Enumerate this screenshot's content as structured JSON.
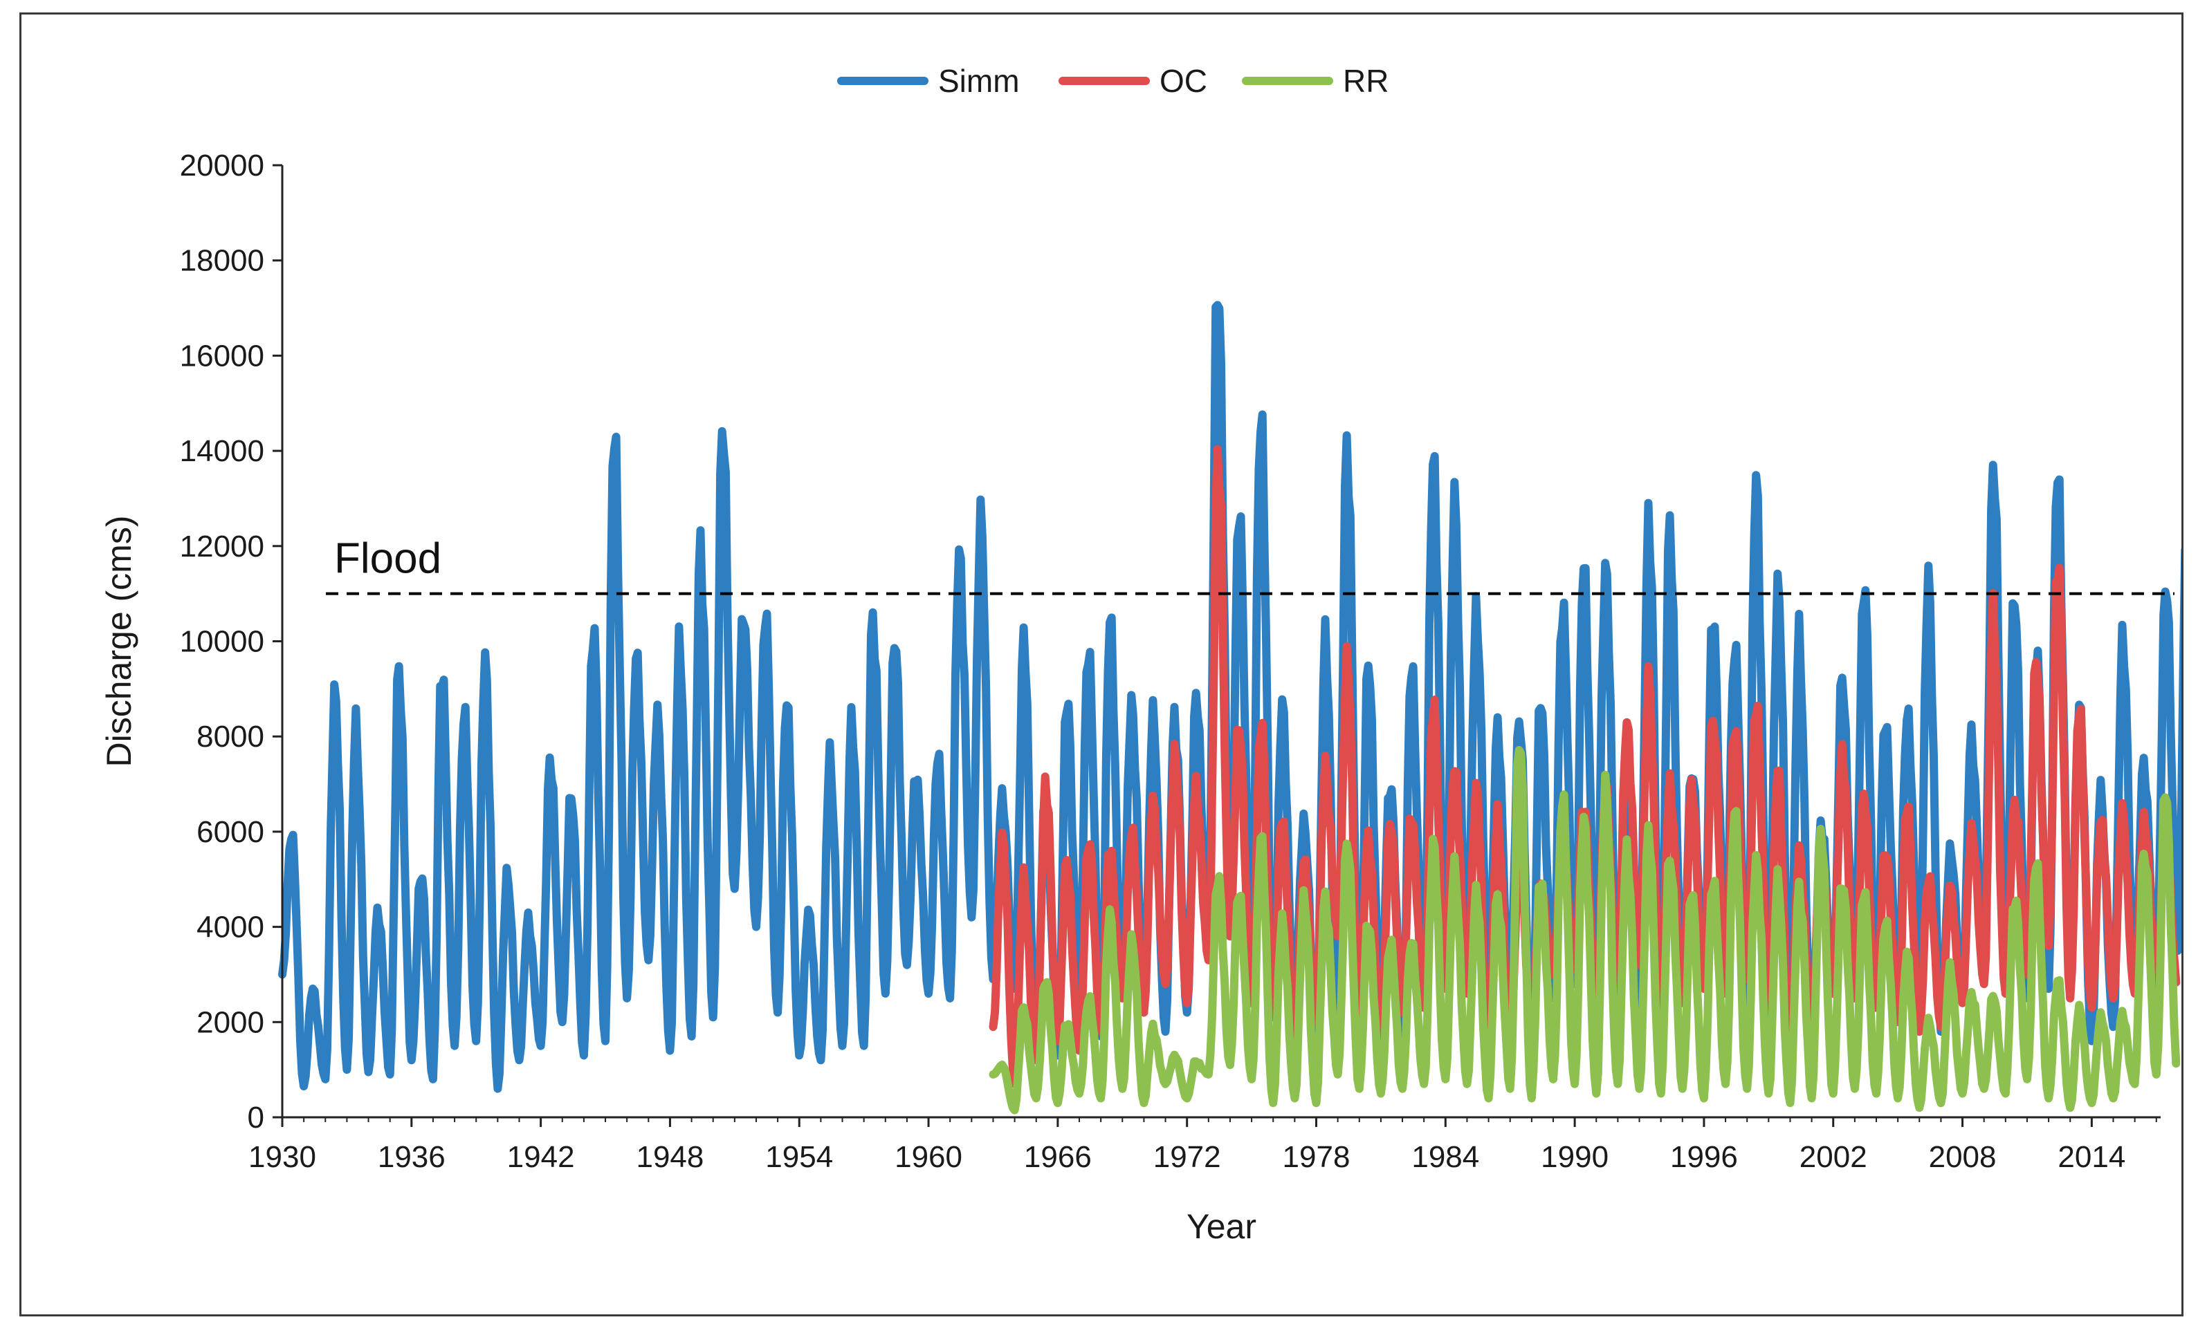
{
  "chart_data": {
    "type": "line",
    "title": "",
    "xlabel": "Year",
    "ylabel": "Discharge (cms)",
    "xlim": [
      1930,
      2017.2
    ],
    "ylim": [
      0,
      20000
    ],
    "x_ticks": [
      1930,
      1936,
      1942,
      1948,
      1954,
      1960,
      1966,
      1972,
      1978,
      1984,
      1990,
      1996,
      2002,
      2008,
      2014
    ],
    "y_ticks": [
      0,
      2000,
      4000,
      6000,
      8000,
      10000,
      12000,
      14000,
      16000,
      18000,
      20000
    ],
    "grid": false,
    "legend_position": "top-center",
    "threshold": {
      "label": "Flood",
      "value": 11000,
      "color": "#000000"
    },
    "series": [
      {
        "name": "Simm",
        "color": "#2E7FC1",
        "start_year": 1930,
        "annual_peaks": [
          6000,
          2700,
          8900,
          8200,
          4300,
          9500,
          5100,
          9500,
          8400,
          9700,
          5000,
          4200,
          7400,
          6900,
          10100,
          14800,
          9500,
          8600,
          9700,
          12300,
          14200,
          10800,
          10400,
          9000,
          4200,
          7800,
          8100,
          10900,
          9800,
          7400,
          7400,
          12300,
          12300,
          6900,
          9800,
          6900,
          8500,
          10200,
          10100,
          9000,
          8200,
          8700,
          8600,
          18300,
          12400,
          15300,
          8400,
          6400,
          9700,
          14700,
          9300,
          7200,
          9200,
          14300,
          12600,
          10900,
          8000,
          8600,
          8600,
          11000,
          11400,
          11800,
          7300,
          12800,
          12200,
          7400,
          10400,
          10000,
          13200,
          11300,
          10000,
          6200,
          9200,
          11300,
          8300,
          8500,
          11300,
          5600,
          8000,
          13700,
          11000,
          9700,
          13700,
          8600,
          6900,
          9900,
          7500,
          11100,
          12300
        ],
        "annual_lows": [
          3000,
          650,
          800,
          1000,
          950,
          900,
          1200,
          800,
          1500,
          1600,
          600,
          1200,
          1500,
          2000,
          1300,
          1600,
          2500,
          3300,
          1400,
          1700,
          2100,
          4800,
          4000,
          2200,
          1300,
          1200,
          1500,
          1500,
          2600,
          3200,
          2600,
          2500,
          4200,
          2900,
          2700,
          1200,
          1300,
          2700,
          1700,
          2700,
          2400,
          1800,
          2200,
          3800,
          4000,
          3600,
          2100,
          2300,
          1600,
          2200,
          1500,
          2300,
          1600,
          2800,
          2900,
          3000,
          2600,
          2600,
          1100,
          2500,
          2800,
          3300,
          2300,
          2300,
          1800,
          2600,
          2800,
          3700,
          2100,
          2700,
          1800,
          1500,
          2600,
          3200,
          2400,
          2600,
          2800,
          1800,
          2500,
          3600,
          2900,
          2500,
          2700,
          3000,
          1600,
          1900,
          2800,
          3100,
          3500
        ]
      },
      {
        "name": "OC",
        "color": "#E04B4B",
        "start_year": 1963,
        "annual_peaks": [
          5900,
          5000,
          7000,
          5400,
          5800,
          5700,
          6000,
          6700,
          7600,
          7000,
          13800,
          8300,
          8200,
          6400,
          5300,
          7500,
          9500,
          6000,
          6100,
          6500,
          8500,
          7500,
          6800,
          6500,
          5500,
          5000,
          5800,
          6700,
          6700,
          8500,
          9000,
          7200,
          6800,
          8700,
          8000,
          9000,
          7100,
          5800,
          5600,
          7900,
          6600,
          5800,
          6400,
          5200,
          4700,
          6200,
          10300,
          6800,
          9400,
          12100,
          8400,
          6400,
          6300,
          6400,
          6000
        ],
        "annual_lows": [
          1900,
          700,
          1200,
          1600,
          1400,
          1800,
          2500,
          2200,
          2800,
          2400,
          3300,
          3800,
          2400,
          2200,
          1700,
          2000,
          3800,
          2200,
          1700,
          2200,
          2300,
          2700,
          2600,
          1200,
          1400,
          1900,
          3000,
          3100,
          2200,
          2800,
          3200,
          2200,
          2400,
          2700,
          2600,
          2900,
          2000,
          1300,
          1500,
          2600,
          2500,
          2300,
          2000,
          1800,
          1900,
          2400,
          2800,
          2600,
          3000,
          3600,
          2500,
          2300,
          2500,
          2600,
          2700
        ]
      },
      {
        "name": "RR",
        "color": "#8DC04F",
        "start_year": 1963,
        "annual_peaks": [
          1100,
          2300,
          2900,
          2000,
          2500,
          4300,
          3700,
          1900,
          1300,
          1200,
          5000,
          4800,
          5800,
          4200,
          4500,
          4700,
          5700,
          4200,
          3600,
          3800,
          5600,
          5400,
          4600,
          4800,
          7700,
          5200,
          6500,
          6500,
          6700,
          5800,
          5800,
          5700,
          4600,
          5200,
          6200,
          5600,
          4800,
          5000,
          5800,
          5200,
          4600,
          4300,
          3300,
          2100,
          3000,
          2700,
          2500,
          4800,
          5200,
          3000,
          2200,
          2200,
          2100,
          5800,
          6700
        ],
        "annual_lows": [
          900,
          150,
          400,
          300,
          500,
          400,
          600,
          300,
          700,
          400,
          900,
          1100,
          800,
          300,
          400,
          300,
          900,
          600,
          500,
          600,
          700,
          800,
          700,
          400,
          600,
          400,
          800,
          700,
          500,
          700,
          600,
          500,
          600,
          400,
          700,
          600,
          500,
          300,
          400,
          500,
          600,
          500,
          400,
          200,
          300,
          500,
          600,
          500,
          800,
          400,
          200,
          300,
          400,
          700,
          900
        ]
      }
    ]
  }
}
